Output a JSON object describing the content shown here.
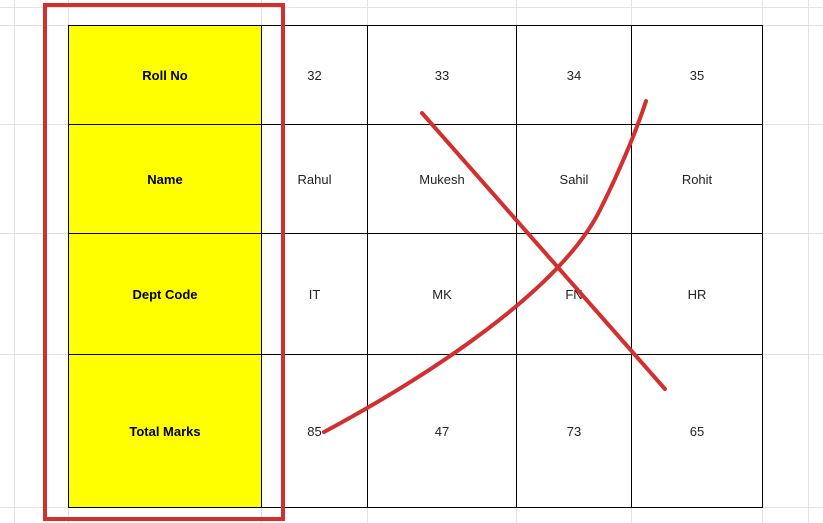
{
  "table": {
    "rows": [
      {
        "header": "Roll No",
        "cells": [
          "32",
          "33",
          "34",
          "35"
        ]
      },
      {
        "header": "Name",
        "cells": [
          "Rahul",
          "Mukesh",
          "Sahil",
          "Rohit"
        ]
      },
      {
        "header": "Dept Code",
        "cells": [
          "IT",
          "MK",
          "FN",
          "HR"
        ]
      },
      {
        "header": "Total Marks",
        "cells": [
          "85",
          "47",
          "73",
          "65"
        ]
      }
    ]
  },
  "colors": {
    "header_fill": "#ffff00",
    "annotation": "#d32f2f",
    "border": "#000000"
  },
  "annotations": {
    "highlight_box": "red-rectangle-around-header-column",
    "cross_mark": "red-x-across-data-cells"
  }
}
